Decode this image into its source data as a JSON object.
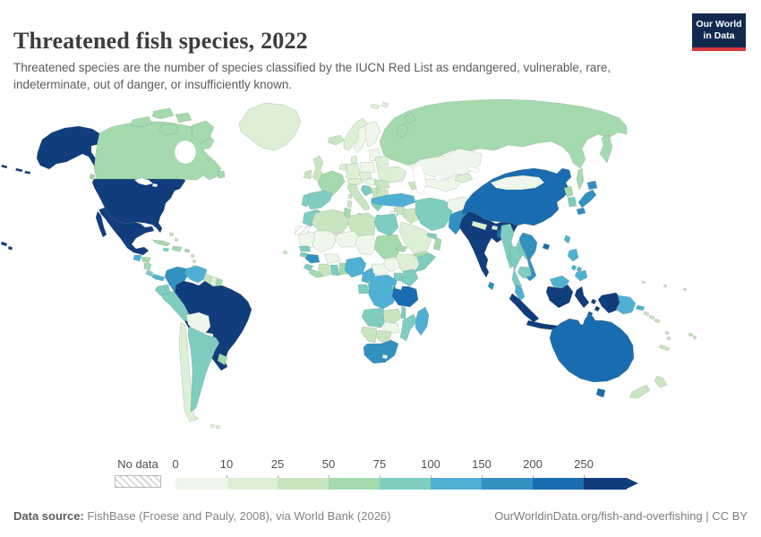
{
  "header": {
    "title": "Threatened fish species, 2022",
    "subtitle": "Threatened species are the number of species classified by the IUCN Red List as endangered, vulnerable, rare, indeterminate, out of danger, or insufficiently known.",
    "logo": {
      "line1": "Our World",
      "line2": "in Data",
      "bg_color": "#12294d",
      "accent_color": "#d7383c"
    }
  },
  "legend": {
    "no_data_label": "No data",
    "ticks": [
      "0",
      "10",
      "25",
      "50",
      "75",
      "100",
      "150",
      "200",
      "250"
    ]
  },
  "footer": {
    "source_label": "Data source:",
    "source_text": " FishBase (Froese and Pauly, 2008), via World Bank (2026)",
    "link_text": "OurWorldinData.org/fish-and-overfishing | CC BY"
  },
  "chart_data": {
    "type": "choropleth",
    "title": "Threatened fish species, 2022",
    "unit": "threatened fish species (IUCN Red List)",
    "legend_position": "bottom",
    "bins": [
      {
        "label": "0-10",
        "color": "#eef7ea"
      },
      {
        "label": "10-25",
        "color": "#ddefd5"
      },
      {
        "label": "25-50",
        "color": "#c9e5c0"
      },
      {
        "label": "50-75",
        "color": "#a5d9ae"
      },
      {
        "label": "75-100",
        "color": "#7fccc0"
      },
      {
        "label": "100-150",
        "color": "#4fb0d4"
      },
      {
        "label": "150-200",
        "color": "#3391c0"
      },
      {
        "label": "200-250",
        "color": "#1a6cb0"
      },
      {
        "label": "250+",
        "color": "#123d7c"
      }
    ],
    "no_data": {
      "label": "No data"
    },
    "countries": [
      {
        "id": "usa",
        "name": "United States",
        "bin": 8
      },
      {
        "id": "canada",
        "name": "Canada",
        "bin": 3
      },
      {
        "id": "greenland",
        "name": "Greenland",
        "bin": 1
      },
      {
        "id": "mexico",
        "name": "Mexico",
        "bin": 8
      },
      {
        "id": "guatemala",
        "name": "Guatemala",
        "bin": 5
      },
      {
        "id": "honduras",
        "name": "Honduras",
        "bin": 3
      },
      {
        "id": "nicaragua",
        "name": "Nicaragua",
        "bin": 3
      },
      {
        "id": "costarica",
        "name": "Costa Rica",
        "bin": 4
      },
      {
        "id": "panama",
        "name": "Panama",
        "bin": 5
      },
      {
        "id": "cuba",
        "name": "Cuba",
        "bin": 3
      },
      {
        "id": "hispaniola",
        "name": "Dominican Republic",
        "bin": 3
      },
      {
        "id": "jamaica",
        "name": "Jamaica",
        "bin": 4
      },
      {
        "id": "puertorico",
        "name": "Puerto Rico",
        "bin": 3
      },
      {
        "id": "bahamas",
        "name": "Bahamas",
        "bin": 2
      },
      {
        "id": "antilles",
        "name": "Lesser Antilles",
        "bin": 2
      },
      {
        "id": "colombia",
        "name": "Colombia",
        "bin": 6
      },
      {
        "id": "venezuela",
        "name": "Venezuela",
        "bin": 5
      },
      {
        "id": "guyana",
        "name": "Guyana",
        "bin": 2
      },
      {
        "id": "suriname",
        "name": "Suriname",
        "bin": 1
      },
      {
        "id": "frguiana",
        "name": "French Guiana",
        "bin": 3
      },
      {
        "id": "brazil",
        "name": "Brazil",
        "bin": 8
      },
      {
        "id": "ecuador",
        "name": "Ecuador",
        "bin": 4
      },
      {
        "id": "peru",
        "name": "Peru",
        "bin": 4
      },
      {
        "id": "bolivia",
        "name": "Bolivia",
        "bin": 0
      },
      {
        "id": "paraguay",
        "name": "Paraguay",
        "bin": 0
      },
      {
        "id": "chile",
        "name": "Chile",
        "bin": 1
      },
      {
        "id": "argentina",
        "name": "Argentina",
        "bin": 4
      },
      {
        "id": "uruguay",
        "name": "Uruguay",
        "bin": 3
      },
      {
        "id": "falklands",
        "name": "Falkland Islands",
        "bin": 1
      },
      {
        "id": "iceland",
        "name": "Iceland",
        "bin": 2
      },
      {
        "id": "uk",
        "name": "United Kingdom",
        "bin": 2
      },
      {
        "id": "ireland",
        "name": "Ireland",
        "bin": 2
      },
      {
        "id": "norway",
        "name": "Norway",
        "bin": 1
      },
      {
        "id": "sweden",
        "name": "Sweden",
        "bin": 0
      },
      {
        "id": "finland",
        "name": "Finland",
        "bin": 0
      },
      {
        "id": "baltics",
        "name": "Lithuania",
        "bin": 0
      },
      {
        "id": "denmark",
        "name": "Denmark",
        "bin": 1
      },
      {
        "id": "netherlands",
        "name": "Netherlands",
        "bin": 1
      },
      {
        "id": "germany",
        "name": "Germany",
        "bin": 1
      },
      {
        "id": "poland",
        "name": "Poland",
        "bin": 0
      },
      {
        "id": "france",
        "name": "France",
        "bin": 3
      },
      {
        "id": "spain",
        "name": "Spain",
        "bin": 4
      },
      {
        "id": "portugal",
        "name": "Portugal",
        "bin": 4
      },
      {
        "id": "italy",
        "name": "Italy",
        "bin": 2
      },
      {
        "id": "swissaustria",
        "name": "Austria",
        "bin": 1
      },
      {
        "id": "czechsvk",
        "name": "Czechia",
        "bin": 1
      },
      {
        "id": "hungary",
        "name": "Hungary",
        "bin": 0
      },
      {
        "id": "croatia",
        "name": "Croatia",
        "bin": 4
      },
      {
        "id": "serbia",
        "name": "Serbia",
        "bin": 2
      },
      {
        "id": "romania",
        "name": "Romania",
        "bin": 2
      },
      {
        "id": "bulgaria",
        "name": "Bulgaria",
        "bin": 2
      },
      {
        "id": "greece",
        "name": "Greece",
        "bin": 4
      },
      {
        "id": "belarus",
        "name": "Belarus",
        "bin": 1
      },
      {
        "id": "ukraine",
        "name": "Ukraine",
        "bin": 1
      },
      {
        "id": "russia",
        "name": "Russia",
        "bin": 3
      },
      {
        "id": "svalbard",
        "name": "Svalbard",
        "bin": 1
      },
      {
        "id": "kazakhstan",
        "name": "Kazakhstan",
        "bin": 0
      },
      {
        "id": "uzbekturkmen",
        "name": "Uzbekistan",
        "bin": 0
      },
      {
        "id": "kyrgyztajik",
        "name": "Kyrgyzstan",
        "bin": 1
      },
      {
        "id": "caucasus",
        "name": "Georgia",
        "bin": 2
      },
      {
        "id": "turkey",
        "name": "Turkey",
        "bin": 5
      },
      {
        "id": "cyprus",
        "name": "Cyprus",
        "bin": 4
      },
      {
        "id": "syria",
        "name": "Syria",
        "bin": 2
      },
      {
        "id": "israeljordan",
        "name": "Jordan",
        "bin": 0
      },
      {
        "id": "iraq",
        "name": "Iraq",
        "bin": 2
      },
      {
        "id": "iran",
        "name": "Iran",
        "bin": 4
      },
      {
        "id": "saudi",
        "name": "Saudi Arabia",
        "bin": 1
      },
      {
        "id": "yemen",
        "name": "Yemen",
        "bin": 3
      },
      {
        "id": "oman",
        "name": "Oman",
        "bin": 3
      },
      {
        "id": "uaeqatar",
        "name": "United Arab Emirates",
        "bin": 4
      },
      {
        "id": "afghanistan",
        "name": "Afghanistan",
        "bin": 0
      },
      {
        "id": "pakistan",
        "name": "Pakistan",
        "bin": 6
      },
      {
        "id": "india",
        "name": "India",
        "bin": 8
      },
      {
        "id": "srilanka",
        "name": "Sri Lanka",
        "bin": 6
      },
      {
        "id": "nepal",
        "name": "Nepal",
        "bin": 1
      },
      {
        "id": "bhutan",
        "name": "Bhutan",
        "bin": 1
      },
      {
        "id": "bangladesh",
        "name": "Bangladesh",
        "bin": 7
      },
      {
        "id": "myanmar",
        "name": "Myanmar",
        "bin": 4
      },
      {
        "id": "thailand",
        "name": "Thailand",
        "bin": 4
      },
      {
        "id": "laos",
        "name": "Laos",
        "bin": 4
      },
      {
        "id": "vietnam",
        "name": "Vietnam",
        "bin": 6
      },
      {
        "id": "cambodia",
        "name": "Cambodia",
        "bin": 4
      },
      {
        "id": "malaysia",
        "name": "Malaysia",
        "bin": 5
      },
      {
        "id": "indonesia",
        "name": "Indonesia",
        "bin": 8
      },
      {
        "id": "png",
        "name": "Papua New Guinea",
        "bin": 5
      },
      {
        "id": "solomons",
        "name": "Solomon Islands",
        "bin": 2
      },
      {
        "id": "vanuatu",
        "name": "Vanuatu",
        "bin": 2
      },
      {
        "id": "fiji",
        "name": "Fiji",
        "bin": 2
      },
      {
        "id": "newcaledonia",
        "name": "New Caledonia",
        "bin": 2
      },
      {
        "id": "micronesia",
        "name": "Micronesia",
        "bin": 2
      },
      {
        "id": "china",
        "name": "China",
        "bin": 7
      },
      {
        "id": "mongolia",
        "name": "Mongolia",
        "bin": 0
      },
      {
        "id": "nkorea",
        "name": "North Korea",
        "bin": 3
      },
      {
        "id": "skorea",
        "name": "South Korea",
        "bin": 4
      },
      {
        "id": "japan",
        "name": "Japan",
        "bin": 6
      },
      {
        "id": "taiwan",
        "name": "Taiwan",
        "bin": 5
      },
      {
        "id": "philippines",
        "name": "Philippines",
        "bin": 5
      },
      {
        "id": "australia",
        "name": "Australia",
        "bin": 7
      },
      {
        "id": "newzealand",
        "name": "New Zealand",
        "bin": 2
      },
      {
        "id": "morocco",
        "name": "Morocco",
        "bin": 4
      },
      {
        "id": "wsahara",
        "name": "Western Sahara",
        "bin": null
      },
      {
        "id": "algeria",
        "name": "Algeria",
        "bin": 2
      },
      {
        "id": "tunisia",
        "name": "Tunisia",
        "bin": 3
      },
      {
        "id": "libya",
        "name": "Libya",
        "bin": 2
      },
      {
        "id": "egypt",
        "name": "Egypt",
        "bin": 4
      },
      {
        "id": "mauritania",
        "name": "Mauritania",
        "bin": 0
      },
      {
        "id": "mali",
        "name": "Mali",
        "bin": 0
      },
      {
        "id": "niger",
        "name": "Niger",
        "bin": 0
      },
      {
        "id": "chad",
        "name": "Chad",
        "bin": 0
      },
      {
        "id": "sudan",
        "name": "Sudan",
        "bin": 3
      },
      {
        "id": "eritrea",
        "name": "Eritrea",
        "bin": 3
      },
      {
        "id": "ethiopia",
        "name": "Ethiopia",
        "bin": 1
      },
      {
        "id": "somalia",
        "name": "Somalia",
        "bin": 4
      },
      {
        "id": "senegal",
        "name": "Senegal",
        "bin": 4
      },
      {
        "id": "guineabissau",
        "name": "Guinea-Bissau",
        "bin": 4
      },
      {
        "id": "guinea",
        "name": "Guinea",
        "bin": 6
      },
      {
        "id": "sierraleone",
        "name": "Sierra Leone",
        "bin": 4
      },
      {
        "id": "liberia",
        "name": "Liberia",
        "bin": 3
      },
      {
        "id": "ivorycoast",
        "name": "Cote d'Ivoire",
        "bin": 2
      },
      {
        "id": "ghana",
        "name": "Ghana",
        "bin": 4
      },
      {
        "id": "togobenin",
        "name": "Benin",
        "bin": 3
      },
      {
        "id": "burkina",
        "name": "Burkina Faso",
        "bin": 0
      },
      {
        "id": "nigeria",
        "name": "Nigeria",
        "bin": 5
      },
      {
        "id": "cameroon",
        "name": "Cameroon",
        "bin": 5
      },
      {
        "id": "car",
        "name": "Central African Republic",
        "bin": 0
      },
      {
        "id": "southsudan",
        "name": "South Sudan",
        "bin": 0
      },
      {
        "id": "gabon",
        "name": "Gabon",
        "bin": 4
      },
      {
        "id": "congo",
        "name": "Congo",
        "bin": 4
      },
      {
        "id": "drc",
        "name": "Democratic Republic of Congo",
        "bin": 5
      },
      {
        "id": "uganda",
        "name": "Uganda",
        "bin": 4
      },
      {
        "id": "kenya",
        "name": "Kenya",
        "bin": 4
      },
      {
        "id": "rwandaburundi",
        "name": "Rwanda",
        "bin": 4
      },
      {
        "id": "tanzania",
        "name": "Tanzania",
        "bin": 7
      },
      {
        "id": "angola",
        "name": "Angola",
        "bin": 4
      },
      {
        "id": "zambia",
        "name": "Zambia",
        "bin": 2
      },
      {
        "id": "malawi",
        "name": "Malawi",
        "bin": 4
      },
      {
        "id": "mozambique",
        "name": "Mozambique",
        "bin": 4
      },
      {
        "id": "zimbabwe",
        "name": "Zimbabwe",
        "bin": 0
      },
      {
        "id": "botswana",
        "name": "Botswana",
        "bin": 2
      },
      {
        "id": "namibia",
        "name": "Namibia",
        "bin": 2
      },
      {
        "id": "southafrica",
        "name": "South Africa",
        "bin": 6
      },
      {
        "id": "lesotho",
        "name": "Lesotho",
        "bin": 0
      },
      {
        "id": "madagascar",
        "name": "Madagascar",
        "bin": 5
      },
      {
        "id": "capeverde",
        "name": "Cape Verde",
        "bin": 2
      }
    ]
  }
}
